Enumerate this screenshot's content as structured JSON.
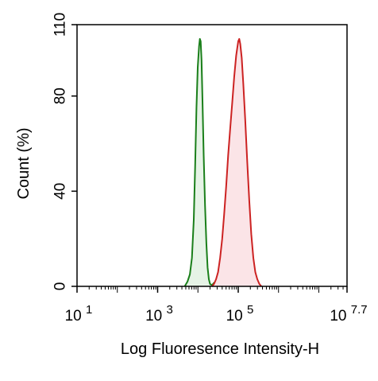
{
  "chart_data": {
    "type": "area",
    "xlabel": "Log Fluoresence Intensity-H",
    "ylabel": "Count  (%)",
    "x_scale": "log",
    "xlim": [
      10,
      50118723
    ],
    "ylim": [
      0,
      110
    ],
    "x_ticks": [
      {
        "value": 10,
        "base": "10",
        "exp": "1"
      },
      {
        "value": 1000,
        "base": "10",
        "exp": "3"
      },
      {
        "value": 100000,
        "base": "10",
        "exp": "5"
      },
      {
        "value": 50118723,
        "base": "10",
        "exp": "7.7"
      }
    ],
    "y_ticks": [
      {
        "value": 0,
        "label": "0"
      },
      {
        "value": 40,
        "label": "40"
      },
      {
        "value": 80,
        "label": "80"
      },
      {
        "value": 110,
        "label": "110"
      }
    ],
    "grid": false,
    "legend": "none",
    "series": [
      {
        "color": "#1a7f1a",
        "fill": "#e6f3e6",
        "points": [
          [
            4700,
            0
          ],
          [
            5500,
            2
          ],
          [
            6300,
            5
          ],
          [
            7100,
            12
          ],
          [
            7900,
            28
          ],
          [
            8500,
            50
          ],
          [
            9200,
            75
          ],
          [
            9900,
            92
          ],
          [
            10700,
            101
          ],
          [
            11200,
            104
          ],
          [
            11700,
            103
          ],
          [
            12300,
            95
          ],
          [
            13000,
            78
          ],
          [
            13900,
            55
          ],
          [
            15000,
            34
          ],
          [
            16200,
            18
          ],
          [
            17400,
            8
          ],
          [
            18700,
            3
          ],
          [
            20000,
            1
          ],
          [
            22400,
            0.5
          ],
          [
            25100,
            1.5
          ],
          [
            28200,
            2
          ],
          [
            31600,
            1
          ],
          [
            35500,
            0.3
          ],
          [
            40000,
            0
          ]
        ]
      },
      {
        "color": "#cc2222",
        "fill": "#fbe4e7",
        "points": [
          [
            22400,
            0
          ],
          [
            25100,
            1
          ],
          [
            28200,
            3
          ],
          [
            31600,
            6
          ],
          [
            35500,
            12
          ],
          [
            40000,
            20
          ],
          [
            44700,
            30
          ],
          [
            50100,
            42
          ],
          [
            56200,
            55
          ],
          [
            63100,
            66
          ],
          [
            70800,
            77
          ],
          [
            79400,
            88
          ],
          [
            89100,
            97
          ],
          [
            100000,
            103
          ],
          [
            106000,
            104
          ],
          [
            112000,
            102
          ],
          [
            122000,
            96
          ],
          [
            134000,
            85
          ],
          [
            149000,
            70
          ],
          [
            168000,
            52
          ],
          [
            188000,
            36
          ],
          [
            211000,
            22
          ],
          [
            237000,
            12
          ],
          [
            266000,
            6
          ],
          [
            298000,
            3
          ],
          [
            335000,
            1
          ],
          [
            376000,
            0
          ]
        ]
      }
    ]
  }
}
